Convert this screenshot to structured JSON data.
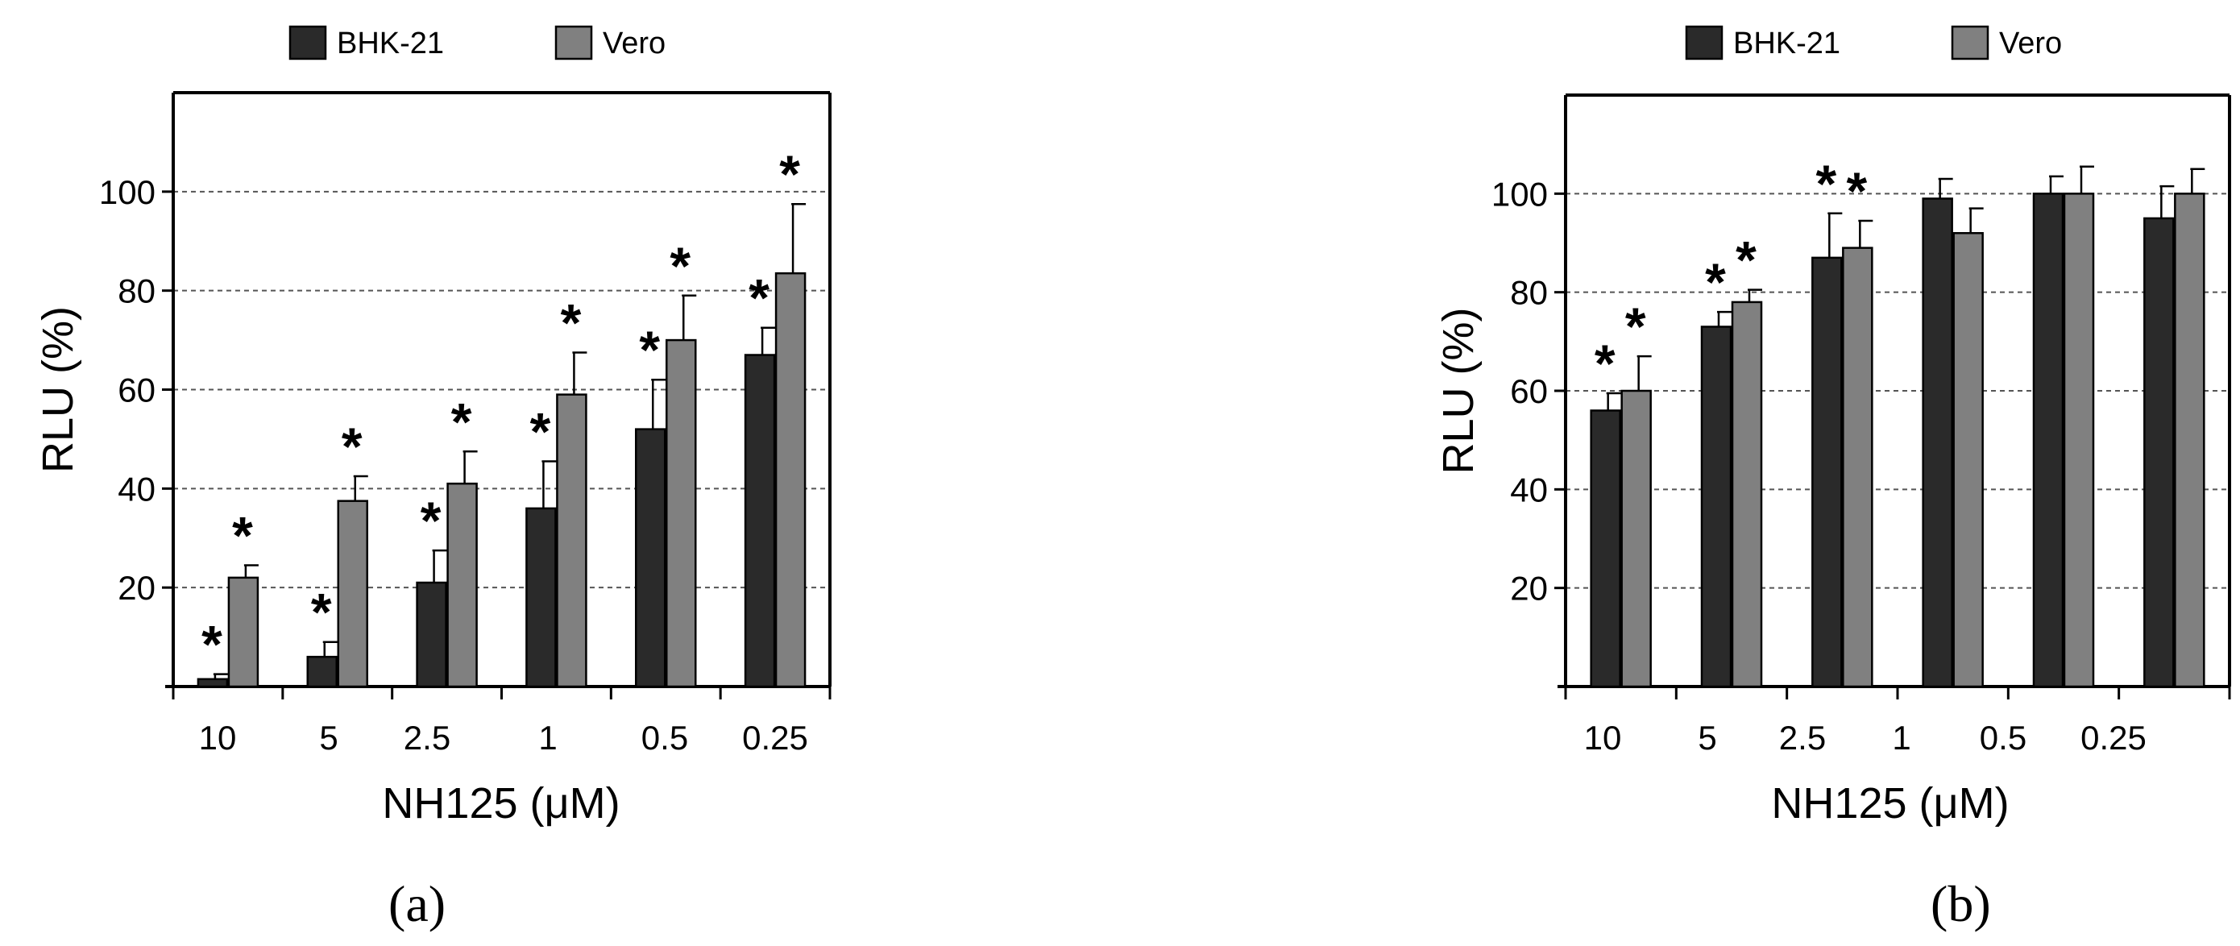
{
  "colors": {
    "bhk": "#2a2a2a",
    "vero": "#808080",
    "axis": "#000000",
    "grid": "#555555"
  },
  "chart_data": [
    {
      "panel": "a",
      "type": "bar",
      "caption": "(a)",
      "xlabel": "NH125 (μM)",
      "ylabel": "RLU (%)",
      "ylim": [
        0,
        120
      ],
      "yticks": [
        20,
        40,
        60,
        80,
        100
      ],
      "grid": true,
      "legend_position": "top",
      "categories": [
        "10",
        "5",
        "2.5",
        "1",
        "0.5",
        "0.25"
      ],
      "series": [
        {
          "name": "BHK-21",
          "values": [
            1.5,
            6,
            21,
            36,
            52,
            67
          ],
          "errors": [
            1,
            3,
            6.5,
            9.5,
            10,
            5.5
          ],
          "significant": [
            true,
            true,
            true,
            true,
            true,
            true
          ]
        },
        {
          "name": "Vero",
          "values": [
            22,
            37.5,
            41,
            59,
            70,
            83.5
          ],
          "errors": [
            2.5,
            5,
            6.5,
            8.5,
            9,
            14
          ],
          "significant": [
            true,
            true,
            true,
            true,
            true,
            true
          ]
        }
      ],
      "annotation": "*"
    },
    {
      "panel": "b",
      "type": "bar",
      "caption": "(b)",
      "xlabel": "NH125 (μM)",
      "ylabel": "RLU (%)",
      "ylim": [
        0,
        120
      ],
      "yticks": [
        20,
        40,
        60,
        80,
        100
      ],
      "grid": true,
      "legend_position": "top",
      "categories": [
        "10",
        "5",
        "2.5",
        "1",
        "0.5",
        "0.25"
      ],
      "series": [
        {
          "name": "BHK-21",
          "values": [
            56,
            73,
            87,
            99,
            100,
            95
          ],
          "errors": [
            3.5,
            3,
            9,
            4,
            3.5,
            6.5
          ],
          "significant": [
            true,
            true,
            true,
            false,
            false,
            false
          ]
        },
        {
          "name": "Vero",
          "values": [
            60,
            78,
            89,
            92,
            100,
            100
          ],
          "errors": [
            7,
            2.5,
            5.5,
            5,
            5.5,
            5
          ],
          "significant": [
            true,
            true,
            true,
            false,
            false,
            false
          ]
        }
      ],
      "annotation": "*"
    }
  ]
}
